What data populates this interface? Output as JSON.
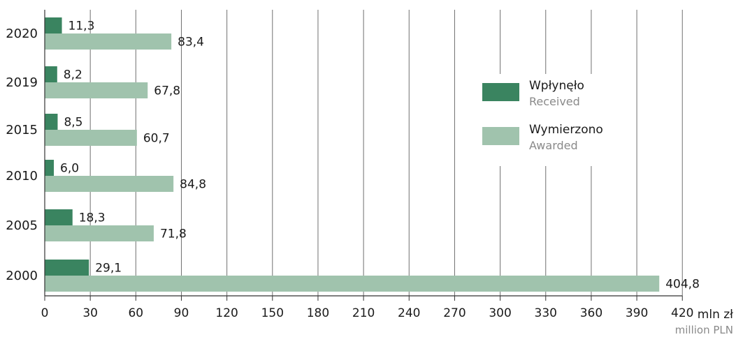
{
  "chart_data": {
    "type": "bar",
    "orientation": "horizontal",
    "categories": [
      "2020",
      "2019",
      "2015",
      "2010",
      "2005",
      "2000"
    ],
    "series": [
      {
        "name": "Wpłynęło",
        "name_en": "Received",
        "color": "#3a8460",
        "values": [
          11.3,
          8.2,
          8.5,
          6.0,
          18.3,
          29.1
        ],
        "labels": [
          "11,3",
          "8,2",
          "8,5",
          "6,0",
          "18,3",
          "29,1"
        ]
      },
      {
        "name": "Wymierzono",
        "name_en": "Awarded",
        "color": "#a0c3ad",
        "values": [
          83.4,
          67.8,
          60.7,
          84.8,
          71.8,
          404.8
        ],
        "labels": [
          "83,4",
          "67,8",
          "60,7",
          "84,8",
          "71,8",
          "404,8"
        ]
      }
    ],
    "xlim": [
      0,
      420
    ],
    "xticks": [
      "0",
      "30",
      "60",
      "90",
      "120",
      "150",
      "180",
      "210",
      "240",
      "270",
      "300",
      "330",
      "360",
      "390",
      "420"
    ],
    "xunit": "mln zł",
    "xunit_en": "million PLN",
    "grid": "vertical",
    "legend": "right",
    "colors": {
      "axis": "#333333",
      "grid": "#707070",
      "text": "#1a1a1a",
      "subtext": "#8a8a8a"
    }
  }
}
